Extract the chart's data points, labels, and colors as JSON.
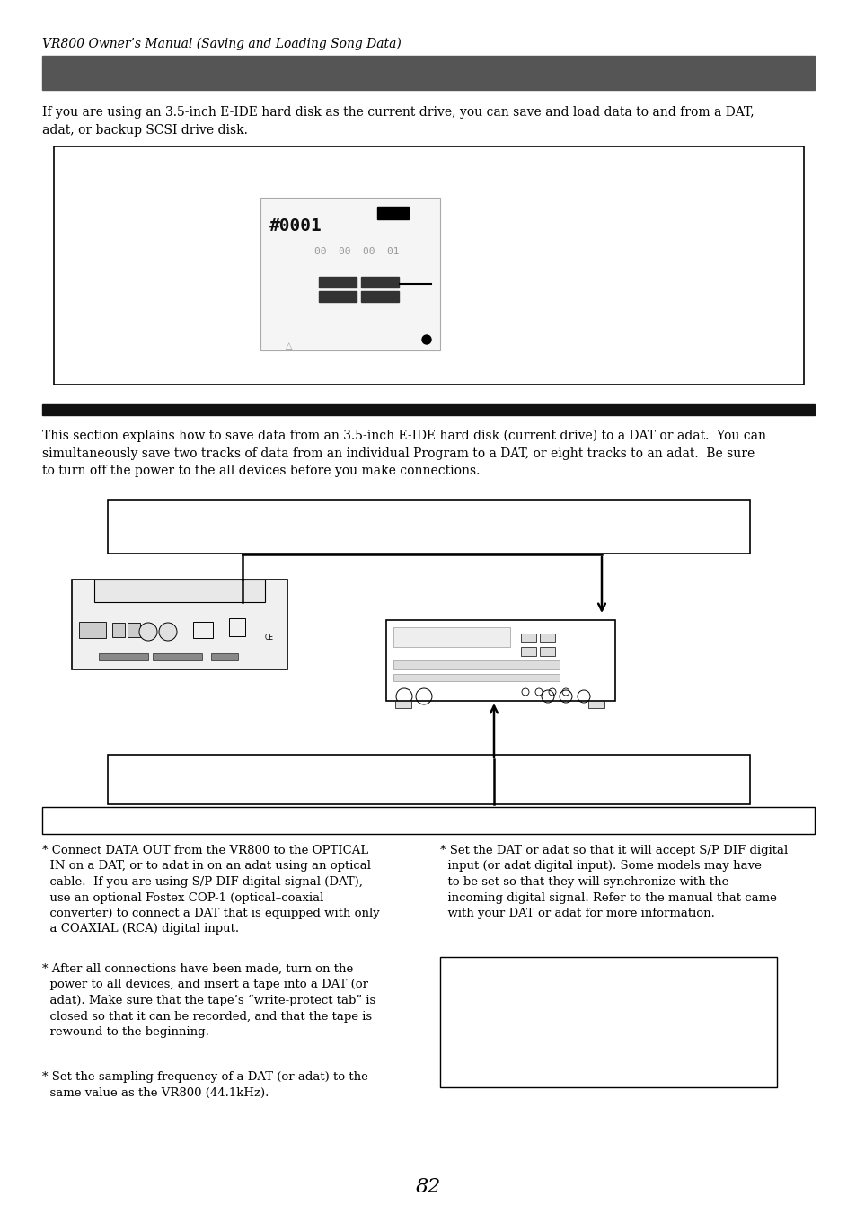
{
  "page_title": "VR800 Owner’s Manual (Saving and Loading Song Data)",
  "dark_bar1_color": "#555555",
  "dark_bar2_color": "#111111",
  "para1": "If you are using an 3.5-inch E-IDE hard disk as the current drive, you can save and load data to and from a DAT,\nadat, or backup SCSI drive disk.",
  "section2_para": "This section explains how to save data from an 3.5-inch E-IDE hard disk (current drive) to a DAT or adat.  You can\nsimultaneously save two tracks of data from an individual Program to a DAT, or eight tracks to an adat.  Be sure\nto turn off the power to the all devices before you make connections.",
  "bullet1": "* Connect DATA OUT from the VR800 to the OPTICAL\n  IN on a DAT, or to adat in on an adat using an optical\n  cable.  If you are using S/P DIF digital signal (DAT),\n  use an optional Fostex COP-1 (optical–coaxial\n  converter) to connect a DAT that is equipped with only\n  a COAXIAL (RCA) digital input.",
  "bullet2": "* After all connections have been made, turn on the\n  power to all devices, and insert a tape into a DAT (or\n  adat). Make sure that the tape’s “write-protect tab” is\n  closed so that it can be recorded, and that the tape is\n  rewound to the beginning.",
  "bullet3": "* Set the sampling frequency of a DAT (or adat) to the\n  same value as the VR800 (44.1kHz).",
  "bullet4": "* Set the DAT or adat so that it will accept S/P DIF digital\n  input (or adat digital input). Some models may have\n  to be set so that they will synchronize with the\n  incoming digital signal. Refer to the manual that came\n  with your DAT or adat for more information.",
  "page_number": "82",
  "bg_color": "#ffffff",
  "text_color": "#000000",
  "border_color": "#000000"
}
